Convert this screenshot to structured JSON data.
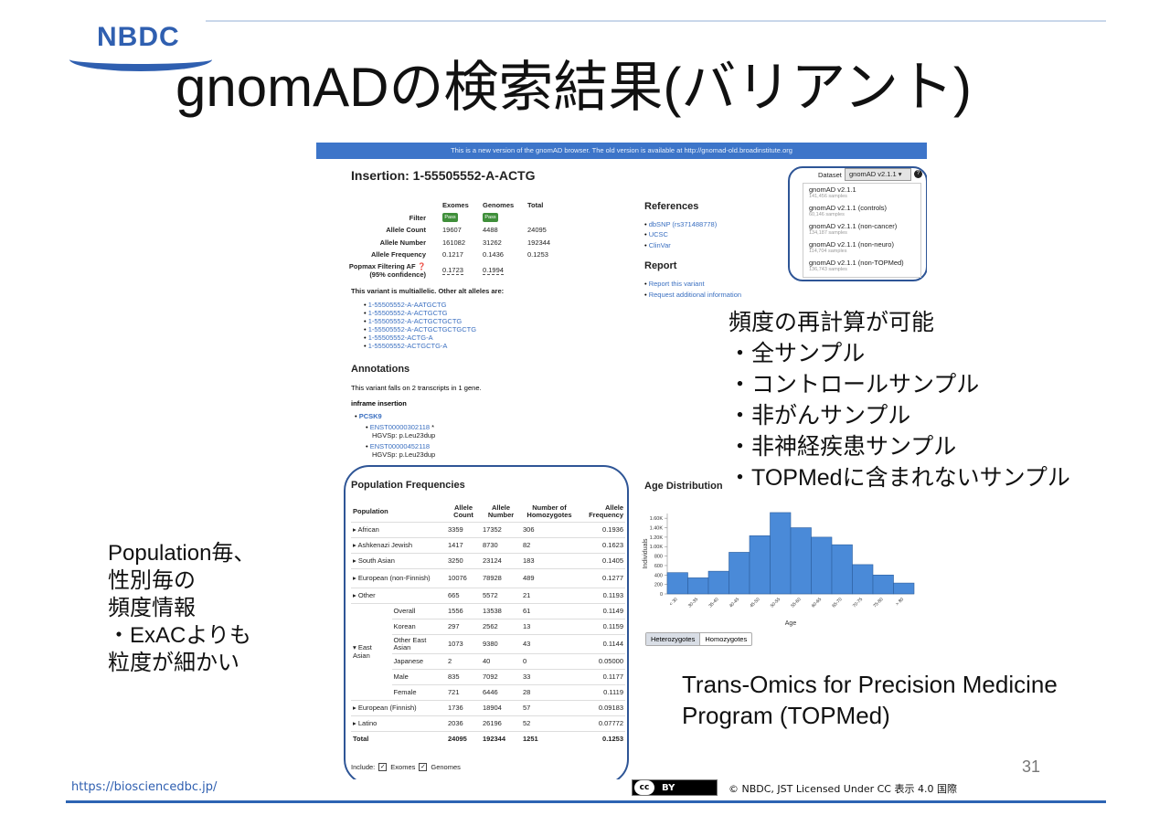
{
  "slide": {
    "logo_text": "NBDC",
    "title": "gnomADの検索結果(バリアント)",
    "footer_url": "https://biosciencedbc.jp/",
    "cc_label": "cc",
    "by_label": "BY",
    "license": "© NBDC, JST Licensed Under CC 表示 4.0 国際",
    "page_number": "31",
    "left_callout": [
      "Population毎、",
      "性別毎の",
      "頻度情報",
      "・ExACよりも",
      "粒度が細かい"
    ],
    "right_callout": [
      "頻度の再計算が可能",
      "・全サンプル",
      "・コントロールサンプル",
      "・非がんサンプル",
      "・非神経疾患サンプル",
      "・TOPMedに含まれないサンプル"
    ],
    "topmed_note": [
      "Trans-Omics for Precision Medicine",
      "Program (TOPMed)"
    ]
  },
  "gnomad": {
    "banner": "This is a new version of the gnomAD browser. The old version is available at http://gnomad-old.broadinstitute.org",
    "variant_title": "Insertion: 1-55505552-A-ACTG",
    "dataset_label": "Dataset",
    "dataset_selected": "gnomAD v2.1.1",
    "dataset_options": [
      {
        "name": "gnomAD v2.1.1",
        "samples": "141,456 samples"
      },
      {
        "name": "gnomAD v2.1.1 (controls)",
        "samples": "60,146 samples"
      },
      {
        "name": "gnomAD v2.1.1 (non-cancer)",
        "samples": "134,187 samples"
      },
      {
        "name": "gnomAD v2.1.1 (non-neuro)",
        "samples": "114,704 samples"
      },
      {
        "name": "gnomAD v2.1.1 (non-TOPMed)",
        "samples": "136,743 samples"
      }
    ],
    "summary": {
      "headers": [
        "Exomes",
        "Genomes",
        "Total"
      ],
      "filter_label": "Filter",
      "pass": "Pass",
      "allele_count_label": "Allele Count",
      "allele_count": [
        "19607",
        "4488",
        "24095"
      ],
      "allele_number_label": "Allele Number",
      "allele_number": [
        "161082",
        "31262",
        "192344"
      ],
      "allele_frequency_label": "Allele Frequency",
      "allele_frequency": [
        "0.1217",
        "0.1436",
        "0.1253"
      ],
      "popmax_label": "Popmax Filtering AF",
      "popmax_sublabel": "(95% confidence)",
      "popmax": [
        "0.1723",
        "0.1994"
      ]
    },
    "multiallelic_note": "This variant is multiallelic. Other alt alleles are:",
    "alt_alleles": [
      "1-55505552-A-AATGCTG",
      "1-55505552-A-ACTGCTG",
      "1-55505552-A-ACTGCTGCTG",
      "1-55505552-A-ACTGCTGCTGCTG",
      "1-55505552-ACTG-A",
      "1-55505552-ACTGCTG-A"
    ],
    "references_title": "References",
    "references": [
      "dbSNP (rs371488778)",
      "UCSC",
      "ClinVar"
    ],
    "report_title": "Report",
    "report_links": [
      "Report this variant",
      "Request additional information"
    ],
    "annotations_title": "Annotations",
    "annotations_text": "This variant falls on 2 transcripts in 1 gene.",
    "consequence": "inframe insertion",
    "gene": "PCSK9",
    "transcripts": [
      {
        "id": "ENST00000302118",
        "mark": "*",
        "hgvs": "HGVSp: p.Leu23dup"
      },
      {
        "id": "ENST00000452118",
        "mark": "",
        "hgvs": "HGVSp: p.Leu23dup"
      }
    ],
    "pop_title": "Population Frequencies",
    "pop_headers": [
      "Population",
      "Allele Count",
      "Allele Number",
      "Number of Homozygotes",
      "Allele Frequency"
    ],
    "pop_rows": [
      {
        "pop": "African",
        "sub": "",
        "ac": "3359",
        "an": "17352",
        "hom": "306",
        "af": "0.1936"
      },
      {
        "pop": "Ashkenazi Jewish",
        "sub": "",
        "ac": "1417",
        "an": "8730",
        "hom": "82",
        "af": "0.1623"
      },
      {
        "pop": "South Asian",
        "sub": "",
        "ac": "3250",
        "an": "23124",
        "hom": "183",
        "af": "0.1405"
      },
      {
        "pop": "European (non-Finnish)",
        "sub": "",
        "ac": "10076",
        "an": "78928",
        "hom": "489",
        "af": "0.1277"
      },
      {
        "pop": "Other",
        "sub": "",
        "ac": "665",
        "an": "5572",
        "hom": "21",
        "af": "0.1193"
      },
      {
        "pop": "East Asian",
        "sub": "Overall",
        "ac": "1556",
        "an": "13538",
        "hom": "61",
        "af": "0.1149"
      },
      {
        "pop": "",
        "sub": "Korean",
        "ac": "297",
        "an": "2562",
        "hom": "13",
        "af": "0.1159"
      },
      {
        "pop": "",
        "sub": "Other East Asian",
        "ac": "1073",
        "an": "9380",
        "hom": "43",
        "af": "0.1144"
      },
      {
        "pop": "",
        "sub": "Japanese",
        "ac": "2",
        "an": "40",
        "hom": "0",
        "af": "0.05000"
      },
      {
        "pop": "",
        "sub": "Male",
        "ac": "835",
        "an": "7092",
        "hom": "33",
        "af": "0.1177"
      },
      {
        "pop": "",
        "sub": "Female",
        "ac": "721",
        "an": "6446",
        "hom": "28",
        "af": "0.1119"
      },
      {
        "pop": "European (Finnish)",
        "sub": "",
        "ac": "1736",
        "an": "18904",
        "hom": "57",
        "af": "0.09183"
      },
      {
        "pop": "Latino",
        "sub": "",
        "ac": "2036",
        "an": "26196",
        "hom": "52",
        "af": "0.07772"
      }
    ],
    "pop_total": {
      "pop": "Total",
      "ac": "24095",
      "an": "192344",
      "hom": "1251",
      "af": "0.1253"
    },
    "include_label": "Include:",
    "include_exomes": "Exomes",
    "include_genomes": "Genomes",
    "age_title": "Age Distribution",
    "toggle": [
      "Heterozygotes",
      "Homozygotes"
    ]
  },
  "chart_data": {
    "type": "bar",
    "title": "Age Distribution",
    "xlabel": "Age",
    "ylabel": "Individuals",
    "categories": [
      "< 30",
      "30-35",
      "35-40",
      "40-45",
      "45-50",
      "50-55",
      "55-60",
      "60-65",
      "65-70",
      "70-75",
      "75-80",
      "> 80"
    ],
    "values": [
      450,
      340,
      480,
      880,
      1230,
      1720,
      1400,
      1200,
      1040,
      620,
      400,
      230
    ],
    "yticks": [
      "0",
      "200",
      "400",
      "600",
      "800",
      "1.00K",
      "1.20K",
      "1.40K",
      "1.60K"
    ],
    "ylim": [
      0,
      1700
    ],
    "color": "#4a8ad8"
  }
}
